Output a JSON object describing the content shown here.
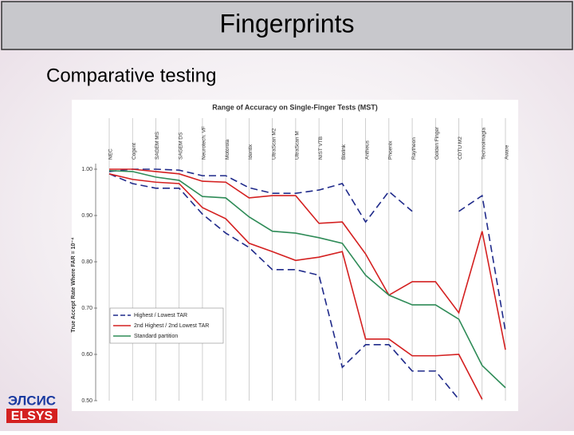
{
  "slide": {
    "title": "Fingerprints",
    "subtitle": "Comparative testing",
    "logo_top": "ЭЛСИС",
    "logo_bottom": "ELSYS"
  },
  "chart_data": {
    "type": "line",
    "title": "Range of Accuracy on Single-Finger Tests (MST)",
    "y_label": "True Accept Rate Where FAR = 10⁻⁴",
    "categories": [
      "NEC",
      "Cogent",
      "SAGEM MS",
      "SAGEM DS",
      "Neurotech. VF",
      "Motorola",
      "Identix",
      "UltraScan M2",
      "UltraScan M",
      "NIST VTB",
      "Biolink",
      "Antheus",
      "Phoenix",
      "Raytheon",
      "Golden Finger",
      "CDTU M2",
      "Technoimagia",
      "Aware"
    ],
    "series": [
      {
        "name": "Highest / Lowest TAR",
        "color": "#1f2a8a",
        "dashed": true,
        "lines": [
          [
            0.995,
            1.0,
            1.0,
            0.998,
            0.986,
            0.986,
            0.96,
            0.948,
            0.948,
            0.955,
            0.969,
            0.886,
            0.952,
            0.909,
            null,
            0.909,
            0.943,
            0.65
          ],
          [
            0.99,
            0.969,
            0.959,
            0.959,
            0.903,
            0.862,
            0.831,
            0.783,
            0.783,
            0.771,
            0.572,
            0.621,
            0.621,
            0.564,
            0.564,
            0.503,
            null,
            null
          ]
        ]
      },
      {
        "name": "2nd Highest / 2nd Lowest TAR",
        "color": "#d42020",
        "dashed": false,
        "lines": [
          [
            1.0,
            1.0,
            0.995,
            0.99,
            0.974,
            0.972,
            0.938,
            0.943,
            0.943,
            0.883,
            0.886,
            0.817,
            0.728,
            0.757,
            0.757,
            0.69,
            0.866,
            0.61
          ],
          [
            0.99,
            0.978,
            0.972,
            0.969,
            0.917,
            0.893,
            0.84,
            0.822,
            0.803,
            0.81,
            0.822,
            0.633,
            0.633,
            0.597,
            0.597,
            0.6,
            0.503,
            null
          ]
        ]
      },
      {
        "name": "Standard partition",
        "color": "#2e8b57",
        "dashed": false,
        "lines": [
          [
            0.997,
            0.995,
            0.983,
            0.976,
            0.941,
            0.938,
            0.897,
            0.866,
            0.862,
            0.852,
            0.84,
            0.771,
            0.728,
            0.707,
            0.707,
            0.676,
            0.576,
            0.528
          ]
        ]
      }
    ],
    "ylim": [
      0.5,
      1.0
    ],
    "yticks": [
      {
        "value": 1.0,
        "label": "1.00"
      },
      {
        "value": 0.9,
        "label": "0.90"
      },
      {
        "value": 0.8,
        "label": "0.80"
      },
      {
        "value": 0.7,
        "label": "0.70"
      },
      {
        "value": 0.6,
        "label": "0.60"
      },
      {
        "value": 0.5,
        "label": "0.50"
      }
    ],
    "grid": true,
    "legend": "lower-left"
  }
}
